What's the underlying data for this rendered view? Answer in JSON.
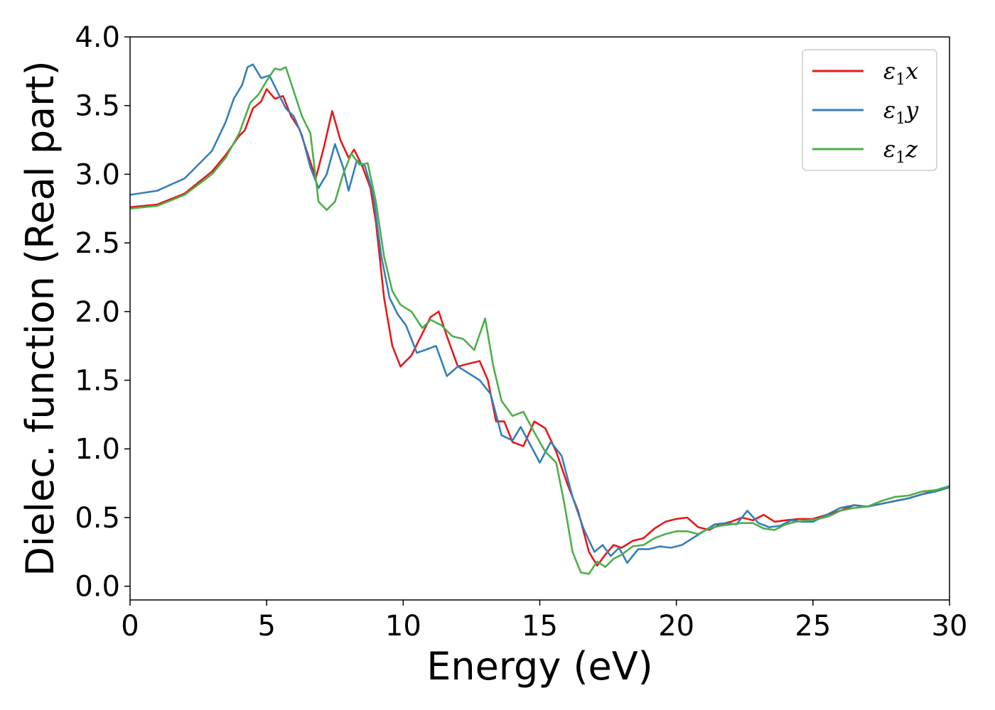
{
  "chart_data": {
    "type": "line",
    "title": "",
    "xlabel": "Energy (eV)",
    "ylabel": "Dielec. function (Real part)",
    "xlim": [
      0,
      30
    ],
    "ylim": [
      -0.1,
      4.0
    ],
    "xticks": [
      0,
      5,
      10,
      15,
      20,
      25,
      30
    ],
    "xtick_labels": [
      "0",
      "5",
      "10",
      "15",
      "20",
      "25",
      "30"
    ],
    "yticks": [
      0.0,
      0.5,
      1.0,
      1.5,
      2.0,
      2.5,
      3.0,
      3.5,
      4.0
    ],
    "ytick_labels": [
      "0.0",
      "0.5",
      "1.0",
      "1.5",
      "2.0",
      "2.5",
      "3.0",
      "3.5",
      "4.0"
    ],
    "grid": false,
    "legend_position": "top-right",
    "series": [
      {
        "name": "ε1x",
        "legend_main": "ε",
        "legend_sub": "1",
        "legend_tail": "x",
        "color": "#e41a1c",
        "x": [
          0,
          1,
          2,
          3,
          3.5,
          4.0,
          4.2,
          4.5,
          4.8,
          5.0,
          5.3,
          5.6,
          5.9,
          6.2,
          6.5,
          6.8,
          7.1,
          7.4,
          7.7,
          8.0,
          8.2,
          8.5,
          8.8,
          9.0,
          9.3,
          9.6,
          9.9,
          10.3,
          10.7,
          11.0,
          11.3,
          11.6,
          12.0,
          12.4,
          12.8,
          13.1,
          13.4,
          13.7,
          14.0,
          14.4,
          14.8,
          15.2,
          15.6,
          16.0,
          16.4,
          16.8,
          17.1,
          17.4,
          17.7,
          18.0,
          18.4,
          18.8,
          19.2,
          19.6,
          20.0,
          20.4,
          20.8,
          21.2,
          21.6,
          22.0,
          22.4,
          22.8,
          23.2,
          23.6,
          24.0,
          24.5,
          25.0,
          25.5,
          26.0,
          26.5,
          27.0,
          27.5,
          28.0,
          28.5,
          29.0,
          29.5,
          30.0
        ],
        "y": [
          2.76,
          2.78,
          2.86,
          3.02,
          3.14,
          3.28,
          3.32,
          3.48,
          3.53,
          3.62,
          3.55,
          3.57,
          3.42,
          3.33,
          3.15,
          2.97,
          3.2,
          3.46,
          3.25,
          3.12,
          3.18,
          3.06,
          2.9,
          2.65,
          2.1,
          1.75,
          1.6,
          1.68,
          1.84,
          1.96,
          2.0,
          1.82,
          1.6,
          1.62,
          1.64,
          1.5,
          1.2,
          1.2,
          1.05,
          1.02,
          1.2,
          1.15,
          0.98,
          0.75,
          0.55,
          0.25,
          0.15,
          0.23,
          0.3,
          0.28,
          0.33,
          0.35,
          0.42,
          0.47,
          0.49,
          0.5,
          0.43,
          0.41,
          0.45,
          0.47,
          0.5,
          0.48,
          0.52,
          0.47,
          0.48,
          0.49,
          0.49,
          0.52,
          0.55,
          0.59,
          0.58,
          0.6,
          0.62,
          0.64,
          0.67,
          0.7,
          0.72
        ]
      },
      {
        "name": "ε1y",
        "legend_main": "ε",
        "legend_sub": "1",
        "legend_tail": "y",
        "color": "#377eb8",
        "x": [
          0,
          1,
          2,
          3,
          3.5,
          3.8,
          4.1,
          4.3,
          4.5,
          4.8,
          5.1,
          5.4,
          5.7,
          6.0,
          6.3,
          6.6,
          6.9,
          7.2,
          7.5,
          7.8,
          8.0,
          8.3,
          8.6,
          8.9,
          9.2,
          9.5,
          9.8,
          10.1,
          10.5,
          10.8,
          11.2,
          11.6,
          12.0,
          12.4,
          12.8,
          13.2,
          13.6,
          14.0,
          14.3,
          14.6,
          15.0,
          15.4,
          15.8,
          16.2,
          16.6,
          17.0,
          17.3,
          17.6,
          17.9,
          18.2,
          18.6,
          19.0,
          19.4,
          19.8,
          20.2,
          20.6,
          21.0,
          21.4,
          21.8,
          22.2,
          22.6,
          23.0,
          23.4,
          23.8,
          24.2,
          24.6,
          25.0,
          25.5,
          26.0,
          26.5,
          27.0,
          27.5,
          28.0,
          28.5,
          29.0,
          29.5,
          30.0
        ],
        "y": [
          2.85,
          2.88,
          2.97,
          3.17,
          3.38,
          3.55,
          3.65,
          3.78,
          3.8,
          3.7,
          3.72,
          3.6,
          3.48,
          3.42,
          3.28,
          3.05,
          2.9,
          3.0,
          3.22,
          3.05,
          2.88,
          3.1,
          3.06,
          2.85,
          2.4,
          2.1,
          1.98,
          1.9,
          1.7,
          1.72,
          1.75,
          1.53,
          1.6,
          1.55,
          1.5,
          1.4,
          1.1,
          1.06,
          1.16,
          1.05,
          0.9,
          1.05,
          0.95,
          0.65,
          0.42,
          0.25,
          0.3,
          0.22,
          0.28,
          0.17,
          0.27,
          0.27,
          0.29,
          0.28,
          0.3,
          0.35,
          0.4,
          0.45,
          0.46,
          0.45,
          0.55,
          0.46,
          0.43,
          0.44,
          0.48,
          0.47,
          0.47,
          0.52,
          0.57,
          0.59,
          0.58,
          0.6,
          0.62,
          0.64,
          0.67,
          0.69,
          0.72
        ]
      },
      {
        "name": "ε1z",
        "legend_main": "ε",
        "legend_sub": "1",
        "legend_tail": "z",
        "color": "#4daf4a",
        "x": [
          0,
          1,
          2,
          3,
          3.5,
          4.0,
          4.4,
          4.7,
          5.0,
          5.3,
          5.5,
          5.7,
          6.0,
          6.3,
          6.6,
          6.9,
          7.2,
          7.5,
          7.8,
          8.1,
          8.4,
          8.7,
          9.0,
          9.3,
          9.6,
          9.9,
          10.3,
          10.7,
          11.0,
          11.4,
          11.8,
          12.2,
          12.6,
          13.0,
          13.3,
          13.6,
          14.0,
          14.4,
          14.8,
          15.2,
          15.6,
          15.9,
          16.2,
          16.5,
          16.8,
          17.1,
          17.4,
          17.7,
          18.0,
          18.4,
          18.8,
          19.2,
          19.6,
          20.0,
          20.4,
          20.8,
          21.2,
          21.6,
          22.0,
          22.4,
          22.8,
          23.2,
          23.6,
          24.0,
          24.4,
          24.8,
          25.2,
          25.6,
          26.0,
          26.5,
          27.0,
          27.5,
          28.0,
          28.5,
          29.0,
          29.5,
          30.0
        ],
        "y": [
          2.75,
          2.77,
          2.85,
          3.0,
          3.12,
          3.3,
          3.52,
          3.58,
          3.68,
          3.77,
          3.76,
          3.78,
          3.6,
          3.42,
          3.3,
          2.8,
          2.74,
          2.8,
          3.0,
          3.15,
          3.07,
          3.08,
          2.8,
          2.4,
          2.15,
          2.05,
          2.0,
          1.88,
          1.94,
          1.9,
          1.82,
          1.8,
          1.72,
          1.95,
          1.6,
          1.35,
          1.24,
          1.27,
          1.12,
          0.98,
          0.9,
          0.6,
          0.25,
          0.1,
          0.09,
          0.18,
          0.14,
          0.2,
          0.23,
          0.29,
          0.3,
          0.35,
          0.38,
          0.4,
          0.4,
          0.38,
          0.42,
          0.44,
          0.45,
          0.46,
          0.46,
          0.42,
          0.41,
          0.45,
          0.47,
          0.48,
          0.49,
          0.51,
          0.55,
          0.57,
          0.58,
          0.62,
          0.65,
          0.66,
          0.69,
          0.7,
          0.73
        ]
      }
    ]
  }
}
